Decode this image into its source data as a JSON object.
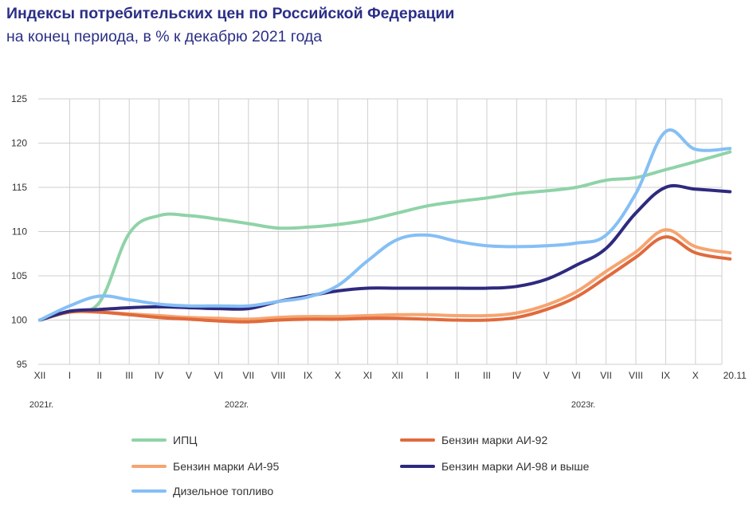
{
  "header": {
    "title": "Индексы потребительских цен по Российской Федерации",
    "subtitle": "на конец периода, в % к декабрю 2021 года"
  },
  "chart_data": {
    "type": "line",
    "title": "Индексы потребительских цен по Российской Федерации",
    "subtitle": "на конец периода, в % к декабрю 2021 года",
    "xlabel": "",
    "ylabel": "",
    "ylim": [
      95,
      125
    ],
    "yticks": [
      95,
      100,
      105,
      110,
      115,
      120,
      125
    ],
    "grid": true,
    "legend_position": "bottom",
    "categories": [
      "XII",
      "I",
      "II",
      "III",
      "IV",
      "V",
      "VI",
      "VII",
      "VIII",
      "IX",
      "X",
      "XI",
      "XII",
      "I",
      "II",
      "III",
      "IV",
      "V",
      "VI",
      "VII",
      "VIII",
      "IX",
      "X",
      "20.11"
    ],
    "year_labels": [
      {
        "label": "2021г.",
        "at": "XII"
      },
      {
        "label": "2022г.",
        "at": "VI"
      },
      {
        "label": "2023г.",
        "at": "VI"
      }
    ],
    "series": [
      {
        "name": "ИПЦ",
        "color": "#8fd3a8",
        "values": [
          100,
          101.0,
          102.0,
          109.8,
          111.8,
          111.8,
          111.4,
          110.9,
          110.4,
          110.5,
          110.8,
          111.3,
          112.1,
          112.9,
          113.4,
          113.8,
          114.3,
          114.6,
          115.0,
          115.8,
          116.1,
          117.0,
          117.9,
          119.0
        ]
      },
      {
        "name": "Бензин марки АИ-92",
        "color": "#e06a3c",
        "values": [
          100,
          100.9,
          100.9,
          100.6,
          100.3,
          100.1,
          99.9,
          99.8,
          100.0,
          100.1,
          100.1,
          100.2,
          100.2,
          100.1,
          100.0,
          100.0,
          100.3,
          101.2,
          102.6,
          104.8,
          107.1,
          109.4,
          107.6,
          106.9
        ]
      },
      {
        "name": "Бензин марки АИ-95",
        "color": "#f6a470",
        "values": [
          100,
          100.9,
          100.9,
          100.7,
          100.5,
          100.3,
          100.2,
          100.1,
          100.3,
          100.4,
          100.4,
          100.5,
          100.6,
          100.6,
          100.5,
          100.5,
          100.8,
          101.7,
          103.2,
          105.5,
          107.7,
          110.2,
          108.3,
          107.6
        ]
      },
      {
        "name": "Бензин марки АИ-98 и выше",
        "color": "#2e2a7e",
        "values": [
          100,
          101.0,
          101.2,
          101.4,
          101.5,
          101.4,
          101.3,
          101.3,
          102.1,
          102.7,
          103.3,
          103.6,
          103.6,
          103.6,
          103.6,
          103.6,
          103.8,
          104.6,
          106.2,
          108.1,
          112.1,
          115.0,
          114.8,
          114.5
        ]
      },
      {
        "name": "Дизельное топливо",
        "color": "#85bff5",
        "values": [
          100,
          101.6,
          102.7,
          102.3,
          101.8,
          101.6,
          101.6,
          101.6,
          102.1,
          102.6,
          103.9,
          106.7,
          109.1,
          109.6,
          108.9,
          108.4,
          108.3,
          108.4,
          108.7,
          109.6,
          114.3,
          121.3,
          119.3,
          119.4
        ]
      }
    ]
  }
}
